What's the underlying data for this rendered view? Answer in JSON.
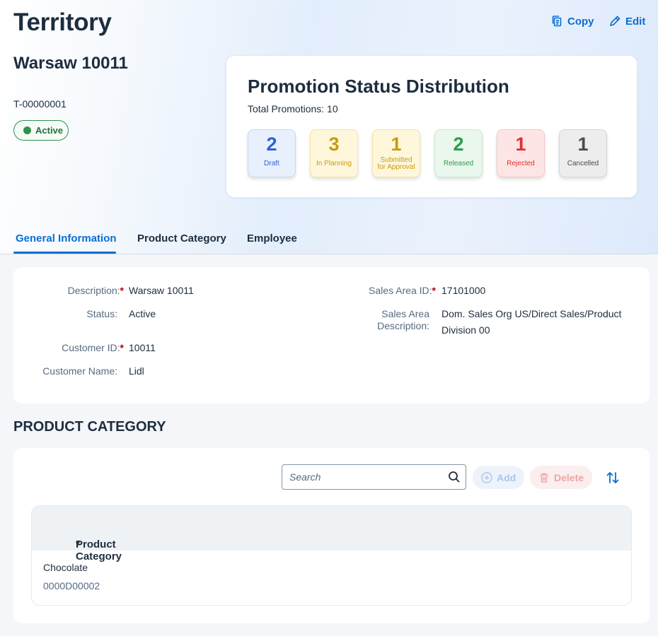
{
  "page": {
    "title": "Territory"
  },
  "actions": {
    "copy_label": "Copy",
    "edit_label": "Edit"
  },
  "object": {
    "name": "Warsaw 10011",
    "id": "T-00000001",
    "status": "Active"
  },
  "distribution": {
    "title": "Promotion Status Distribution",
    "total_label": "Total Promotions: 10",
    "tiles": [
      {
        "count": "2",
        "label": "Draft",
        "color": "#2d62d0",
        "bg": "#e8effd",
        "border": "#c9d8f7"
      },
      {
        "count": "3",
        "label": "In Planning",
        "color": "#c89b0d",
        "bg": "#fff7dc",
        "border": "#f5e2a6"
      },
      {
        "count": "1",
        "label_line1": "Submitted",
        "label_line2": "for Approval",
        "color": "#c89b0d",
        "bg": "#fff7dc",
        "border": "#f5e2a6"
      },
      {
        "count": "2",
        "label": "Released",
        "color": "#2f9a4c",
        "bg": "#e9f7ec",
        "border": "#c8ead1"
      },
      {
        "count": "1",
        "label": "Rejected",
        "color": "#e03030",
        "bg": "#fde5e5",
        "border": "#f6c5c5"
      },
      {
        "count": "1",
        "label": "Cancelled",
        "color": "#4b4b4b",
        "bg": "#ededed",
        "border": "#d6d6d6"
      }
    ]
  },
  "tabs": [
    {
      "label": "General Information",
      "active": true
    },
    {
      "label": "Product Category",
      "active": false
    },
    {
      "label": "Employee",
      "active": false
    }
  ],
  "general": {
    "description_label": "Description:",
    "description": "Warsaw 10011",
    "status_label": "Status:",
    "status": "Active",
    "customer_id_label": "Customer ID:",
    "customer_id": "10011",
    "customer_name_label": "Customer Name:",
    "customer_name": "Lidl",
    "sales_area_id_label": "Sales Area ID:",
    "sales_area_id": "17101000",
    "sales_area_desc_label_line1": "Sales Area",
    "sales_area_desc_label_line2": "Description:",
    "sales_area_desc_line1": "Dom. Sales Org US/Direct Sales/Product",
    "sales_area_desc_line2": "Division 00",
    "required_marker": "*"
  },
  "product_category": {
    "section_title": "PRODUCT CATEGORY",
    "search_placeholder": "Search",
    "add_label": "Add",
    "delete_label": "Delete",
    "column_header": "Product Category",
    "rows": [
      {
        "name": "Chocolate",
        "id": "0000D00002"
      }
    ]
  },
  "colors": {
    "accent": "#0a6ed1",
    "required": "#aa0808",
    "success": "#30914c"
  }
}
